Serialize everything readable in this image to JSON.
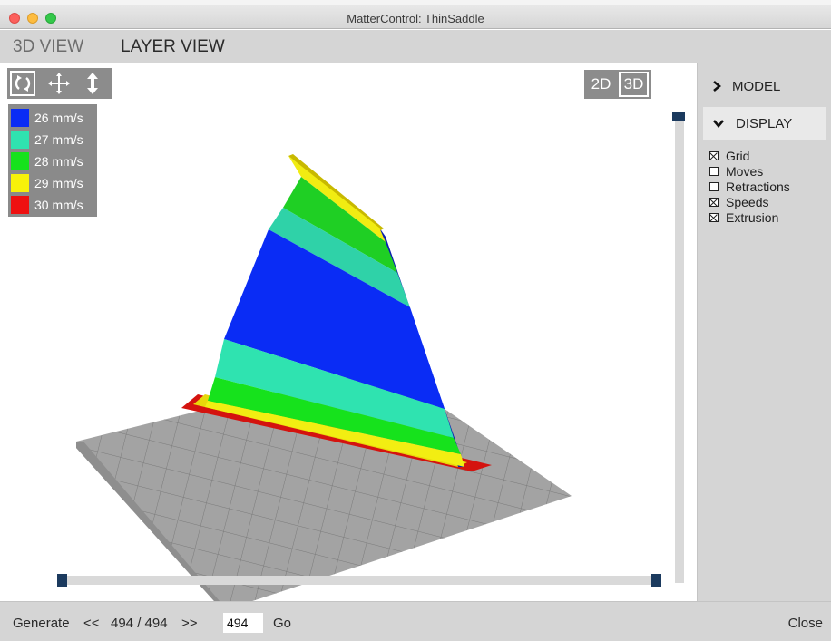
{
  "window": {
    "title": "MatterControl: ThinSaddle"
  },
  "tabs": [
    {
      "label": "3D VIEW",
      "active": false
    },
    {
      "label": "LAYER VIEW",
      "active": true
    }
  ],
  "viewport": {
    "tools": [
      {
        "icon": "rotate-icon",
        "active": true
      },
      {
        "icon": "move-icon",
        "active": false
      },
      {
        "icon": "zoom-icon",
        "active": false
      }
    ],
    "legend": [
      {
        "label": "26 mm/s",
        "color": "#0a2cf5"
      },
      {
        "label": "27 mm/s",
        "color": "#2fe3b0"
      },
      {
        "label": "28 mm/s",
        "color": "#16e21c"
      },
      {
        "label": "29 mm/s",
        "color": "#f7f20a"
      },
      {
        "label": "30 mm/s",
        "color": "#ef1111"
      }
    ],
    "view_mode": {
      "option_2d": "2D",
      "option_3d": "3D",
      "selected": "3D"
    },
    "layer_slider": {
      "value": 1.0
    },
    "range_slider": {
      "start": 0.0,
      "end": 1.0
    }
  },
  "sidepanel": {
    "model_label": "MODEL",
    "display_label": "DISPLAY",
    "options": [
      {
        "label": "Grid",
        "checked": true
      },
      {
        "label": "Moves",
        "checked": false
      },
      {
        "label": "Retractions",
        "checked": false
      },
      {
        "label": "Speeds",
        "checked": true
      },
      {
        "label": "Extrusion",
        "checked": true
      }
    ]
  },
  "footer": {
    "generate": "Generate",
    "prev": "<<",
    "layer_counter": "494 / 494",
    "next": ">>",
    "layer_input": "494",
    "go": "Go",
    "close": "Close"
  }
}
